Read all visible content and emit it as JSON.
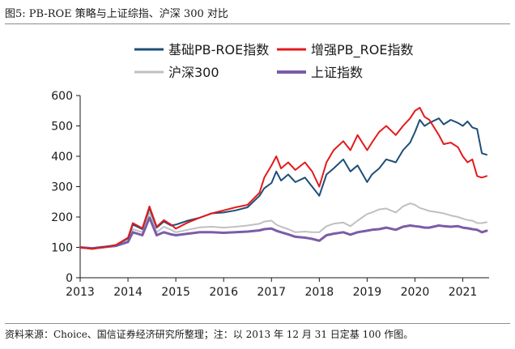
{
  "figure_title": "图5: PB-ROE 策略与上证综指、沪深 300 对比",
  "source_note": "资料来源：Choice、国信证券经济研究所整理；注：以 2013 年 12 月 31 日定基 100 作图。",
  "chart_data": {
    "type": "line",
    "title": "",
    "xlabel": "",
    "ylabel": "",
    "x_ticks": [
      "2013",
      "2014",
      "2015",
      "2016",
      "2017",
      "2018",
      "2019",
      "2020",
      "2021"
    ],
    "y_ticks": [
      "0",
      "100",
      "200",
      "300",
      "400",
      "500",
      "600"
    ],
    "xlim": [
      2013.0,
      2021.55
    ],
    "ylim": [
      0,
      600
    ],
    "grid": false,
    "legend_position": "top",
    "x": [
      2013.0,
      2013.25,
      2013.5,
      2013.75,
      2014.0,
      2014.1,
      2014.3,
      2014.45,
      2014.6,
      2014.75,
      2014.9,
      2015.0,
      2015.25,
      2015.5,
      2015.75,
      2016.0,
      2016.25,
      2016.5,
      2016.75,
      2016.85,
      2017.0,
      2017.1,
      2017.2,
      2017.35,
      2017.5,
      2017.7,
      2017.85,
      2018.0,
      2018.15,
      2018.3,
      2018.5,
      2018.65,
      2018.8,
      2019.0,
      2019.1,
      2019.25,
      2019.4,
      2019.6,
      2019.75,
      2019.9,
      2020.0,
      2020.1,
      2020.2,
      2020.3,
      2020.5,
      2020.6,
      2020.75,
      2020.9,
      2021.0,
      2021.1,
      2021.2,
      2021.3,
      2021.4,
      2021.5
    ],
    "series": [
      {
        "name": "基础PB-ROE指数",
        "color": "#1f4e79",
        "values": [
          100,
          95,
          102,
          108,
          130,
          175,
          160,
          230,
          165,
          185,
          172,
          175,
          188,
          198,
          212,
          215,
          222,
          232,
          270,
          295,
          312,
          350,
          320,
          340,
          315,
          330,
          300,
          270,
          340,
          360,
          390,
          350,
          370,
          315,
          340,
          360,
          390,
          380,
          420,
          445,
          480,
          520,
          500,
          510,
          525,
          505,
          520,
          510,
          500,
          515,
          495,
          490,
          410,
          405
        ]
      },
      {
        "name": "增强PB_ROE指数",
        "color": "#e31a1c",
        "values": [
          100,
          95,
          100,
          108,
          132,
          180,
          163,
          235,
          168,
          190,
          175,
          162,
          182,
          198,
          212,
          222,
          232,
          240,
          280,
          330,
          370,
          400,
          360,
          380,
          355,
          380,
          350,
          300,
          380,
          420,
          450,
          420,
          470,
          420,
          445,
          480,
          500,
          470,
          500,
          525,
          550,
          560,
          530,
          520,
          470,
          440,
          445,
          430,
          400,
          380,
          390,
          335,
          330,
          335
        ]
      },
      {
        "name": "沪深300",
        "color": "#c0c0c0",
        "values": [
          100,
          96,
          101,
          106,
          125,
          160,
          150,
          215,
          150,
          168,
          158,
          150,
          158,
          166,
          168,
          165,
          168,
          172,
          178,
          185,
          188,
          175,
          168,
          160,
          150,
          152,
          150,
          150,
          170,
          178,
          182,
          170,
          188,
          210,
          215,
          225,
          228,
          215,
          235,
          245,
          240,
          230,
          225,
          220,
          215,
          212,
          205,
          200,
          195,
          190,
          188,
          180,
          180,
          183
        ]
      },
      {
        "name": "上证指数",
        "color": "#7b5ca8",
        "values": [
          100,
          97,
          101,
          105,
          118,
          150,
          140,
          198,
          140,
          150,
          143,
          140,
          145,
          150,
          150,
          148,
          150,
          152,
          156,
          160,
          162,
          155,
          150,
          143,
          135,
          132,
          128,
          122,
          140,
          145,
          150,
          142,
          150,
          155,
          158,
          160,
          165,
          158,
          168,
          172,
          170,
          168,
          165,
          165,
          172,
          170,
          168,
          170,
          165,
          163,
          160,
          158,
          150,
          155
        ]
      }
    ]
  }
}
